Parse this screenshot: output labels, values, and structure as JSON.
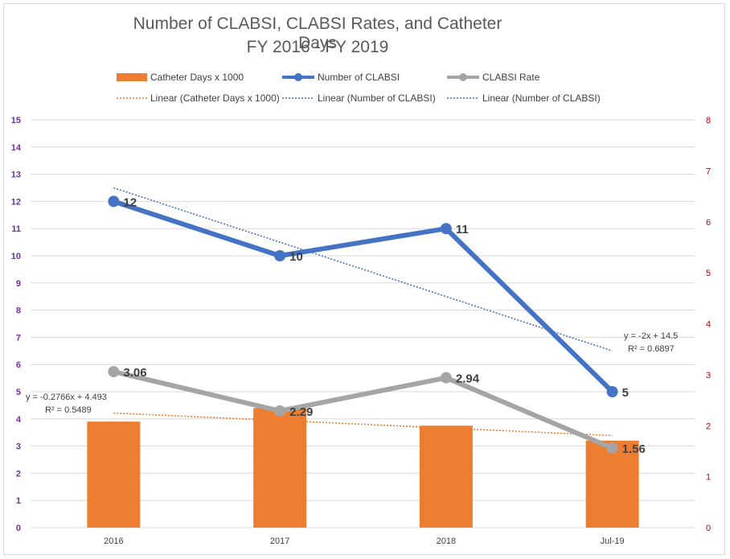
{
  "chart_data": {
    "type": "bar-line-combo",
    "title": "Number of CLABSI, CLABSI Rates, and Catheter Days",
    "subtitle": "FY 2016 - FY 2019",
    "categories": [
      "2016",
      "2017",
      "2018",
      "Jul-19"
    ],
    "bars": {
      "name": "Catheter Days x 1000",
      "axis": "left",
      "values": [
        3.9,
        4.4,
        3.75,
        3.2
      ],
      "color": "#ed7d31"
    },
    "series": [
      {
        "name": "Number of CLABSI",
        "axis": "left",
        "values": [
          12,
          10,
          11,
          5
        ],
        "labels": [
          "12",
          "10",
          "11",
          "5"
        ],
        "color": "#4472c4"
      },
      {
        "name": "CLABSI Rate",
        "axis": "right",
        "values": [
          3.06,
          2.29,
          2.94,
          1.56
        ],
        "labels": [
          "3.06",
          "2.29",
          "2.94",
          "1.56"
        ],
        "color": "#a5a5a5"
      }
    ],
    "trendlines": [
      {
        "name": "Linear (Catheter Days x 1000)",
        "axis": "left",
        "slope": -0.2766,
        "intercept": 4.493,
        "color": "#ed7d31",
        "equation": "y = -0.2766x + 4.493",
        "r2": "R² = 0.5489"
      },
      {
        "name": "Linear (Number of CLABSI)",
        "axis": "left",
        "slope": -2,
        "intercept": 14.5,
        "color": "#4472c4",
        "equation": "y = -2x + 14.5",
        "r2": "R² = 0.6897"
      },
      {
        "name": "Linear (Number of CLABSI)",
        "axis": "left",
        "color": "#4472c4",
        "legend_only": true
      }
    ],
    "yLeft": {
      "min": 0,
      "max": 15,
      "step": 1,
      "color": "#7030a0"
    },
    "yRight": {
      "min": 0,
      "max": 8,
      "step": 1,
      "color": "#c00000"
    },
    "grid": true,
    "legend_position": "top"
  }
}
